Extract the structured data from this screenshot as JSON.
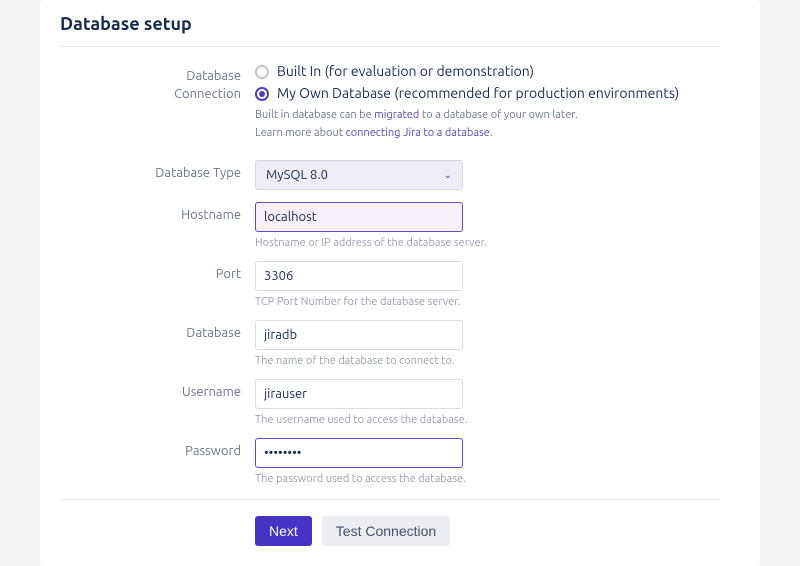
{
  "title": "Database setup",
  "connection": {
    "label_line1": "Database",
    "label_line2": "Connection",
    "opt_builtin": "Built In (for evaluation or demonstration)",
    "opt_own": "My Own Database (recommended for production environments)",
    "hint1_pre": "Built in database can be ",
    "hint1_link": "migrated",
    "hint1_post": " to a database of your own later.",
    "hint2_pre": "Learn more about ",
    "hint2_link": "connecting Jira to a database",
    "hint2_post": "."
  },
  "dbtype": {
    "label": "Database Type",
    "value": "MySQL 8.0"
  },
  "hostname": {
    "label": "Hostname",
    "value": "localhost",
    "hint": "Hostname or IP address of the database server."
  },
  "port": {
    "label": "Port",
    "value": "3306",
    "hint": "TCP Port Number for the database server."
  },
  "database": {
    "label": "Database",
    "value": "jiradb",
    "hint": "The name of the database to connect to."
  },
  "username": {
    "label": "Username",
    "value": "jirauser",
    "hint": "The username used to access the database."
  },
  "password": {
    "label": "Password",
    "value": "••••••••",
    "hint": "The password used to access the database."
  },
  "buttons": {
    "next": "Next",
    "test": "Test Connection"
  }
}
